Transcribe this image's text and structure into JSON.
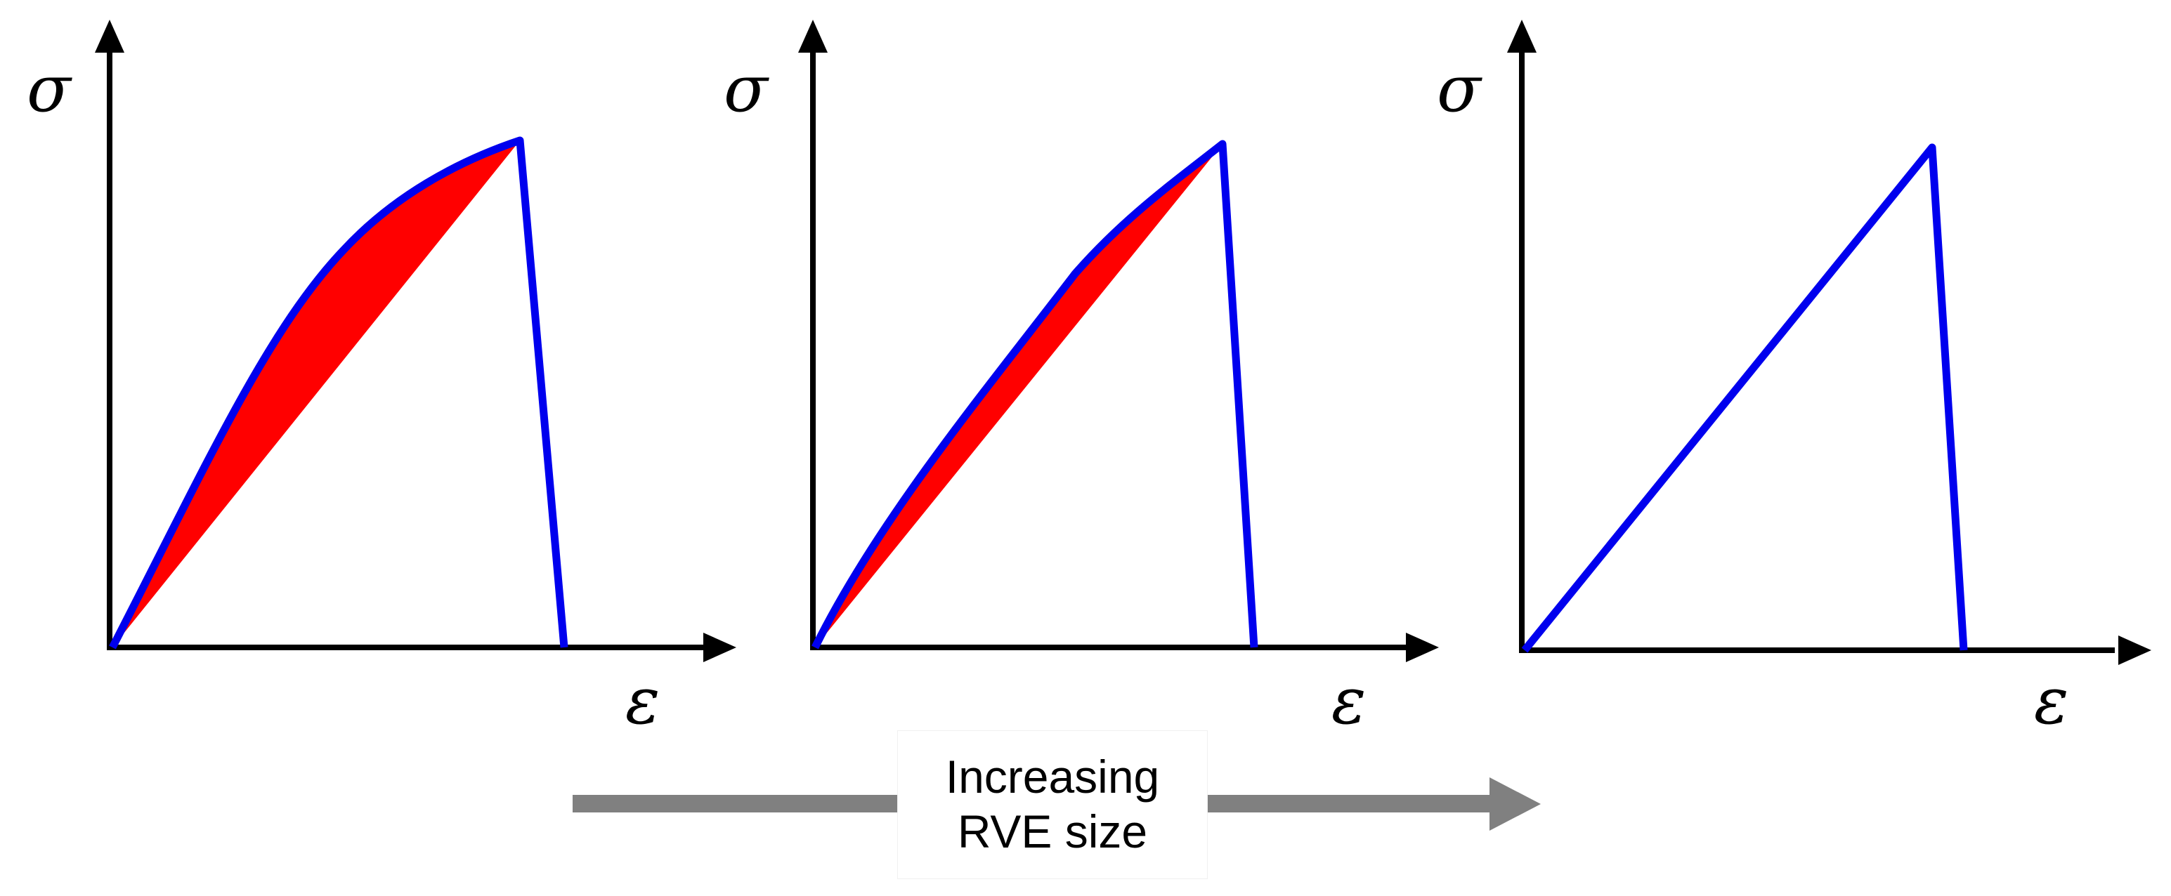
{
  "caption": {
    "line1": "Increasing",
    "line2": "RVE size"
  },
  "panels": [
    {
      "y_label": "σ",
      "x_label": "ε",
      "nonlinearity": "large"
    },
    {
      "y_label": "σ",
      "x_label": "ε",
      "nonlinearity": "small"
    },
    {
      "y_label": "σ",
      "x_label": "ε",
      "nonlinearity": "none"
    }
  ],
  "colors": {
    "curve": "#0000ee",
    "region": "#ff0000",
    "axis": "#000000",
    "arrow": "#808080"
  }
}
